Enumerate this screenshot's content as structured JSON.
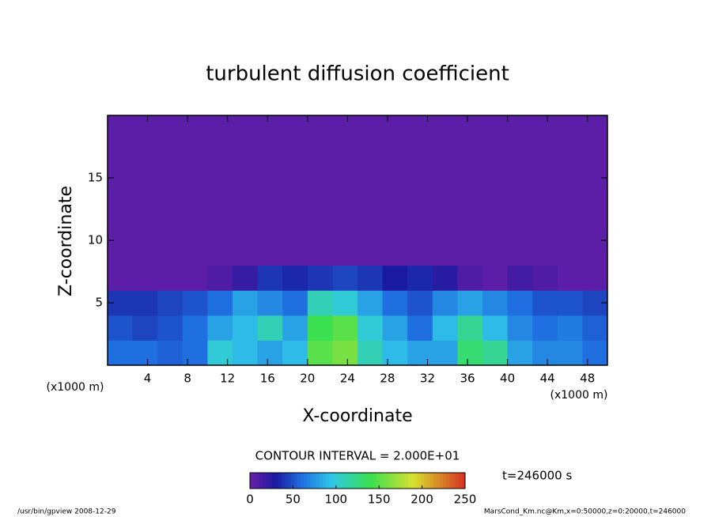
{
  "chart_data": {
    "type": "heatmap",
    "title": "turbulent diffusion coefficient",
    "xlabel": "X-coordinate",
    "ylabel": "Z-coordinate",
    "x_unit": "(x1000 m)",
    "y_unit": "(x1000 m)",
    "x": [
      0,
      2.5,
      5,
      7.5,
      10,
      12.5,
      15,
      17.5,
      20,
      22.5,
      25,
      27.5,
      30,
      32.5,
      35,
      37.5,
      40,
      42.5,
      45,
      47.5,
      50
    ],
    "y": [
      0,
      2,
      4,
      6,
      8,
      20
    ],
    "z": [
      [
        60,
        60,
        55,
        60,
        100,
        90,
        80,
        90,
        150,
        160,
        110,
        90,
        80,
        80,
        130,
        120,
        80,
        70,
        70,
        60
      ],
      [
        50,
        45,
        50,
        60,
        80,
        90,
        110,
        80,
        140,
        150,
        100,
        80,
        60,
        90,
        120,
        90,
        70,
        60,
        65,
        55
      ],
      [
        40,
        40,
        45,
        50,
        60,
        80,
        70,
        60,
        110,
        100,
        80,
        60,
        50,
        70,
        80,
        70,
        60,
        50,
        50,
        45
      ],
      [
        5,
        5,
        5,
        5,
        10,
        20,
        40,
        35,
        40,
        45,
        40,
        30,
        35,
        25,
        10,
        5,
        15,
        10,
        5,
        5
      ],
      [
        5,
        5,
        5,
        5,
        5,
        5,
        5,
        5,
        5,
        5,
        5,
        5,
        5,
        5,
        5,
        5,
        5,
        5,
        5,
        5
      ]
    ],
    "xlim": [
      0,
      50
    ],
    "ylim": [
      0,
      20
    ],
    "xticks": [
      4,
      8,
      12,
      16,
      20,
      24,
      28,
      32,
      36,
      40,
      44,
      48
    ],
    "yticks": [
      5,
      10,
      15
    ],
    "colormap": [
      [
        0,
        "#6a1fa8"
      ],
      [
        30,
        "#1a1aa0"
      ],
      [
        60,
        "#1f6fe0"
      ],
      [
        95,
        "#30c8e8"
      ],
      [
        140,
        "#3ae050"
      ],
      [
        190,
        "#d8e030"
      ],
      [
        250,
        "#d83020"
      ]
    ],
    "colorbar_lim": [
      0,
      250
    ],
    "colorbar_ticks": [
      0,
      50,
      100,
      150,
      200,
      250
    ],
    "contour_note": "CONTOUR INTERVAL = 2.000E+01",
    "time_label": "t=246000 s",
    "footer_left": "/usr/bin/gpview  2008-12-29",
    "footer_right": "MarsCond_Km.nc@Km,x=0:50000,z=0:20000,t=246000"
  }
}
